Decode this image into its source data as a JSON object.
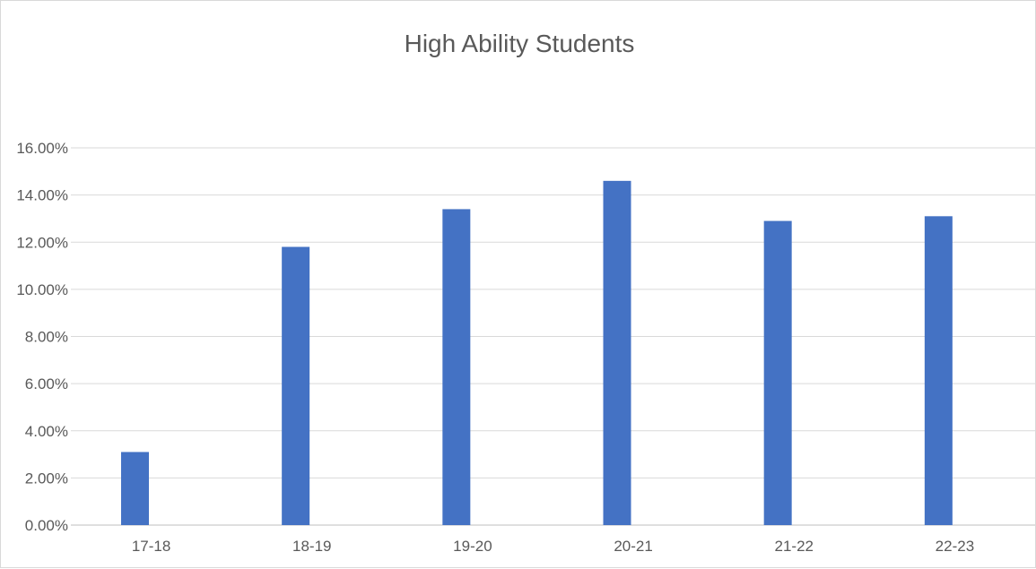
{
  "chart_data": {
    "type": "bar",
    "title": "High Ability Students",
    "categories": [
      "17-18",
      "18-19",
      "19-20",
      "20-21",
      "21-22",
      "22-23"
    ],
    "series": [
      {
        "values": [
          3.1,
          11.8,
          13.4,
          14.6,
          12.9,
          13.1
        ]
      }
    ],
    "ylim": [
      0,
      16
    ],
    "yticks": [
      0,
      2,
      4,
      6,
      8,
      10,
      12,
      14,
      16
    ],
    "ytick_labels": [
      "0.00%",
      "2.00%",
      "4.00%",
      "6.00%",
      "8.00%",
      "10.00%",
      "12.00%",
      "14.00%",
      "16.00%"
    ],
    "grid": true,
    "legend": "none",
    "colors": {
      "bar": "#4472c4"
    }
  }
}
